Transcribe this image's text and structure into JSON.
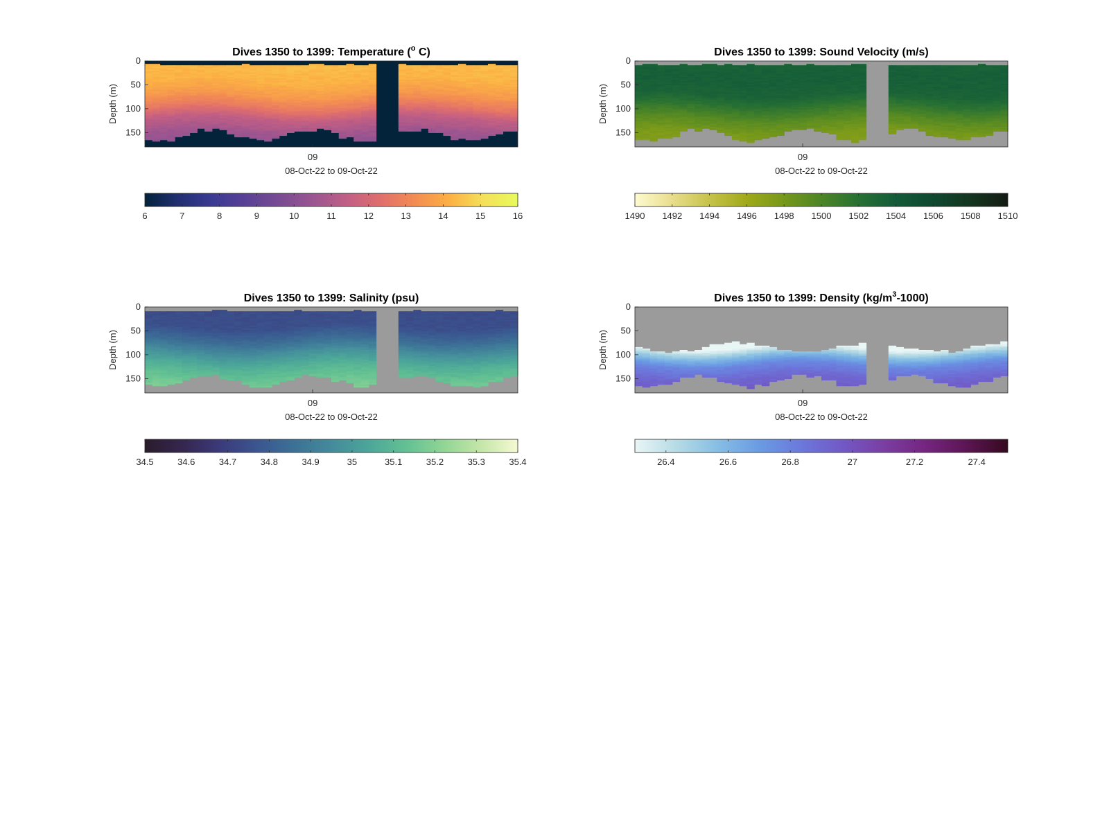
{
  "chart_data": [
    {
      "type": "heatmap",
      "id": "temperature",
      "title": "Dives 1350 to 1399: Temperature (",
      "title_sup": "o",
      "title_tail": " C)",
      "ylabel": "Depth (m)",
      "xlabel": "08-Oct-22 to 09-Oct-22",
      "x_ticks": [
        "09"
      ],
      "y_ticks": [
        0,
        50,
        100,
        150
      ],
      "ylim": [
        0,
        180
      ],
      "dive_count": 50,
      "gap_dives": [
        1381,
        1382,
        1383
      ],
      "colorbar": {
        "ticks": [
          "6",
          "7",
          "8",
          "9",
          "10",
          "11",
          "12",
          "13",
          "14",
          "15",
          "16"
        ],
        "range": [
          6,
          16
        ],
        "colors": [
          "#03233a",
          "#222f73",
          "#3b3a93",
          "#5a4196",
          "#7a4b93",
          "#9c5590",
          "#c25f84",
          "#e1706b",
          "#f38d52",
          "#fcb144",
          "#f4e15a",
          "#e8fa5b"
        ]
      },
      "nodata_color": "#03233a",
      "profile": [
        [
          0,
          14.4
        ],
        [
          40,
          14.2
        ],
        [
          70,
          13.6
        ],
        [
          95,
          12.7
        ],
        [
          120,
          11.4
        ],
        [
          150,
          10.6
        ],
        [
          180,
          10.2
        ]
      ]
    },
    {
      "type": "heatmap",
      "id": "sound-velocity",
      "title": "Dives 1350 to 1399: Sound Velocity (m/s)",
      "title_sup": "",
      "title_tail": "",
      "ylabel": "Depth (m)",
      "xlabel": "08-Oct-22 to 09-Oct-22",
      "x_ticks": [
        "09"
      ],
      "y_ticks": [
        0,
        50,
        100,
        150
      ],
      "ylim": [
        0,
        180
      ],
      "dive_count": 50,
      "gap_dives": [
        1381,
        1382,
        1383
      ],
      "colorbar": {
        "ticks": [
          "1490",
          "1492",
          "1494",
          "1496",
          "1498",
          "1500",
          "1502",
          "1504",
          "1506",
          "1508",
          "1510"
        ],
        "range": [
          1490,
          1510
        ],
        "colors": [
          "#fdfbd0",
          "#e9dd8c",
          "#c6c24a",
          "#9fa91a",
          "#76981a",
          "#4c8526",
          "#277034",
          "#135b39",
          "#0f4830",
          "#14351f",
          "#141a12"
        ]
      },
      "nodata_color": "#9b9b9b",
      "profile": [
        [
          0,
          1503.4
        ],
        [
          40,
          1503.6
        ],
        [
          70,
          1503.2
        ],
        [
          95,
          1501.4
        ],
        [
          120,
          1499.4
        ],
        [
          150,
          1497.8
        ],
        [
          180,
          1497.2
        ]
      ]
    },
    {
      "type": "heatmap",
      "id": "salinity",
      "title": "Dives 1350 to 1399: Salinity (psu)",
      "title_sup": "",
      "title_tail": "",
      "ylabel": "Depth (m)",
      "xlabel": "08-Oct-22 to 09-Oct-22",
      "x_ticks": [
        "09"
      ],
      "y_ticks": [
        0,
        50,
        100,
        150
      ],
      "ylim": [
        0,
        180
      ],
      "dive_count": 50,
      "gap_dives": [
        1381,
        1382,
        1383
      ],
      "colorbar": {
        "ticks": [
          "34.5",
          "34.6",
          "34.7",
          "34.8",
          "34.9",
          "35",
          "35.1",
          "35.2",
          "35.3",
          "35.4"
        ],
        "range": [
          34.5,
          35.4
        ],
        "colors": [
          "#2a1c2c",
          "#35264f",
          "#3b3a7a",
          "#3b5590",
          "#3c7196",
          "#448b9b",
          "#4ca699",
          "#62c093",
          "#90d595",
          "#c4e6a8",
          "#f5f9d3"
        ]
      },
      "nodata_color": "#9b9b9b",
      "profile": [
        [
          0,
          34.74
        ],
        [
          40,
          34.75
        ],
        [
          70,
          34.85
        ],
        [
          95,
          34.97
        ],
        [
          120,
          35.07
        ],
        [
          150,
          35.15
        ],
        [
          180,
          35.2
        ]
      ]
    },
    {
      "type": "heatmap",
      "id": "density",
      "title": "Dives 1350 to 1399: Density (kg/m",
      "title_sup": "3",
      "title_tail": "-1000)",
      "ylabel": "Depth (m)",
      "xlabel": "08-Oct-22 to 09-Oct-22",
      "x_ticks": [
        "09"
      ],
      "y_ticks": [
        0,
        50,
        100,
        150
      ],
      "ylim": [
        0,
        180
      ],
      "dive_count": 50,
      "gap_dives": [
        1381,
        1382,
        1383
      ],
      "colorbar": {
        "ticks": [
          "26.4",
          "26.6",
          "26.8",
          "27",
          "27.2",
          "27.4"
        ],
        "range": [
          26.3,
          27.5
        ],
        "colors": [
          "#e9f6f6",
          "#b6dbe5",
          "#86bee4",
          "#6a9be3",
          "#6b79dc",
          "#7259c6",
          "#7a3ea3",
          "#752580",
          "#5c1553",
          "#36091f"
        ]
      },
      "nodata_color": "#9b9b9b",
      "profile": [
        [
          0,
          26.2
        ],
        [
          80,
          26.25
        ],
        [
          100,
          26.55
        ],
        [
          120,
          26.78
        ],
        [
          150,
          26.92
        ],
        [
          180,
          26.98
        ]
      ]
    }
  ]
}
